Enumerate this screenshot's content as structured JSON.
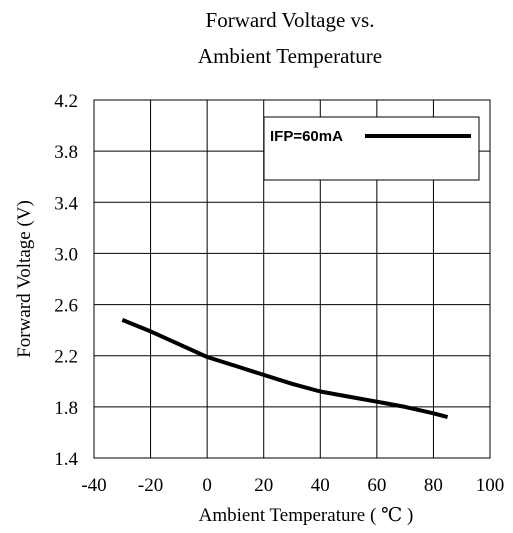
{
  "chart_data": {
    "type": "line",
    "title_lines": [
      "Forward Voltage vs.",
      "Ambient Temperature"
    ],
    "xlabel": "Ambient Temperature ( ℃ )",
    "ylabel": "Forward Voltage (V)",
    "xlim": [
      -40,
      100
    ],
    "ylim": [
      1.4,
      4.2
    ],
    "x_ticks": [
      "-40",
      "-20",
      "0",
      "20",
      "40",
      "60",
      "80",
      "100"
    ],
    "y_ticks": [
      "1.4",
      "1.8",
      "2.2",
      "2.6",
      "3.0",
      "3.4",
      "3.8",
      "4.2"
    ],
    "grid": true,
    "legend_position": "top-right",
    "series": [
      {
        "name": "IFP=60mA",
        "color": "#000000",
        "x": [
          -30,
          -20,
          -10,
          0,
          10,
          20,
          30,
          40,
          50,
          60,
          70,
          80,
          85
        ],
        "y": [
          2.48,
          2.39,
          2.29,
          2.19,
          2.12,
          2.05,
          1.98,
          1.92,
          1.88,
          1.84,
          1.8,
          1.75,
          1.72
        ]
      }
    ]
  }
}
